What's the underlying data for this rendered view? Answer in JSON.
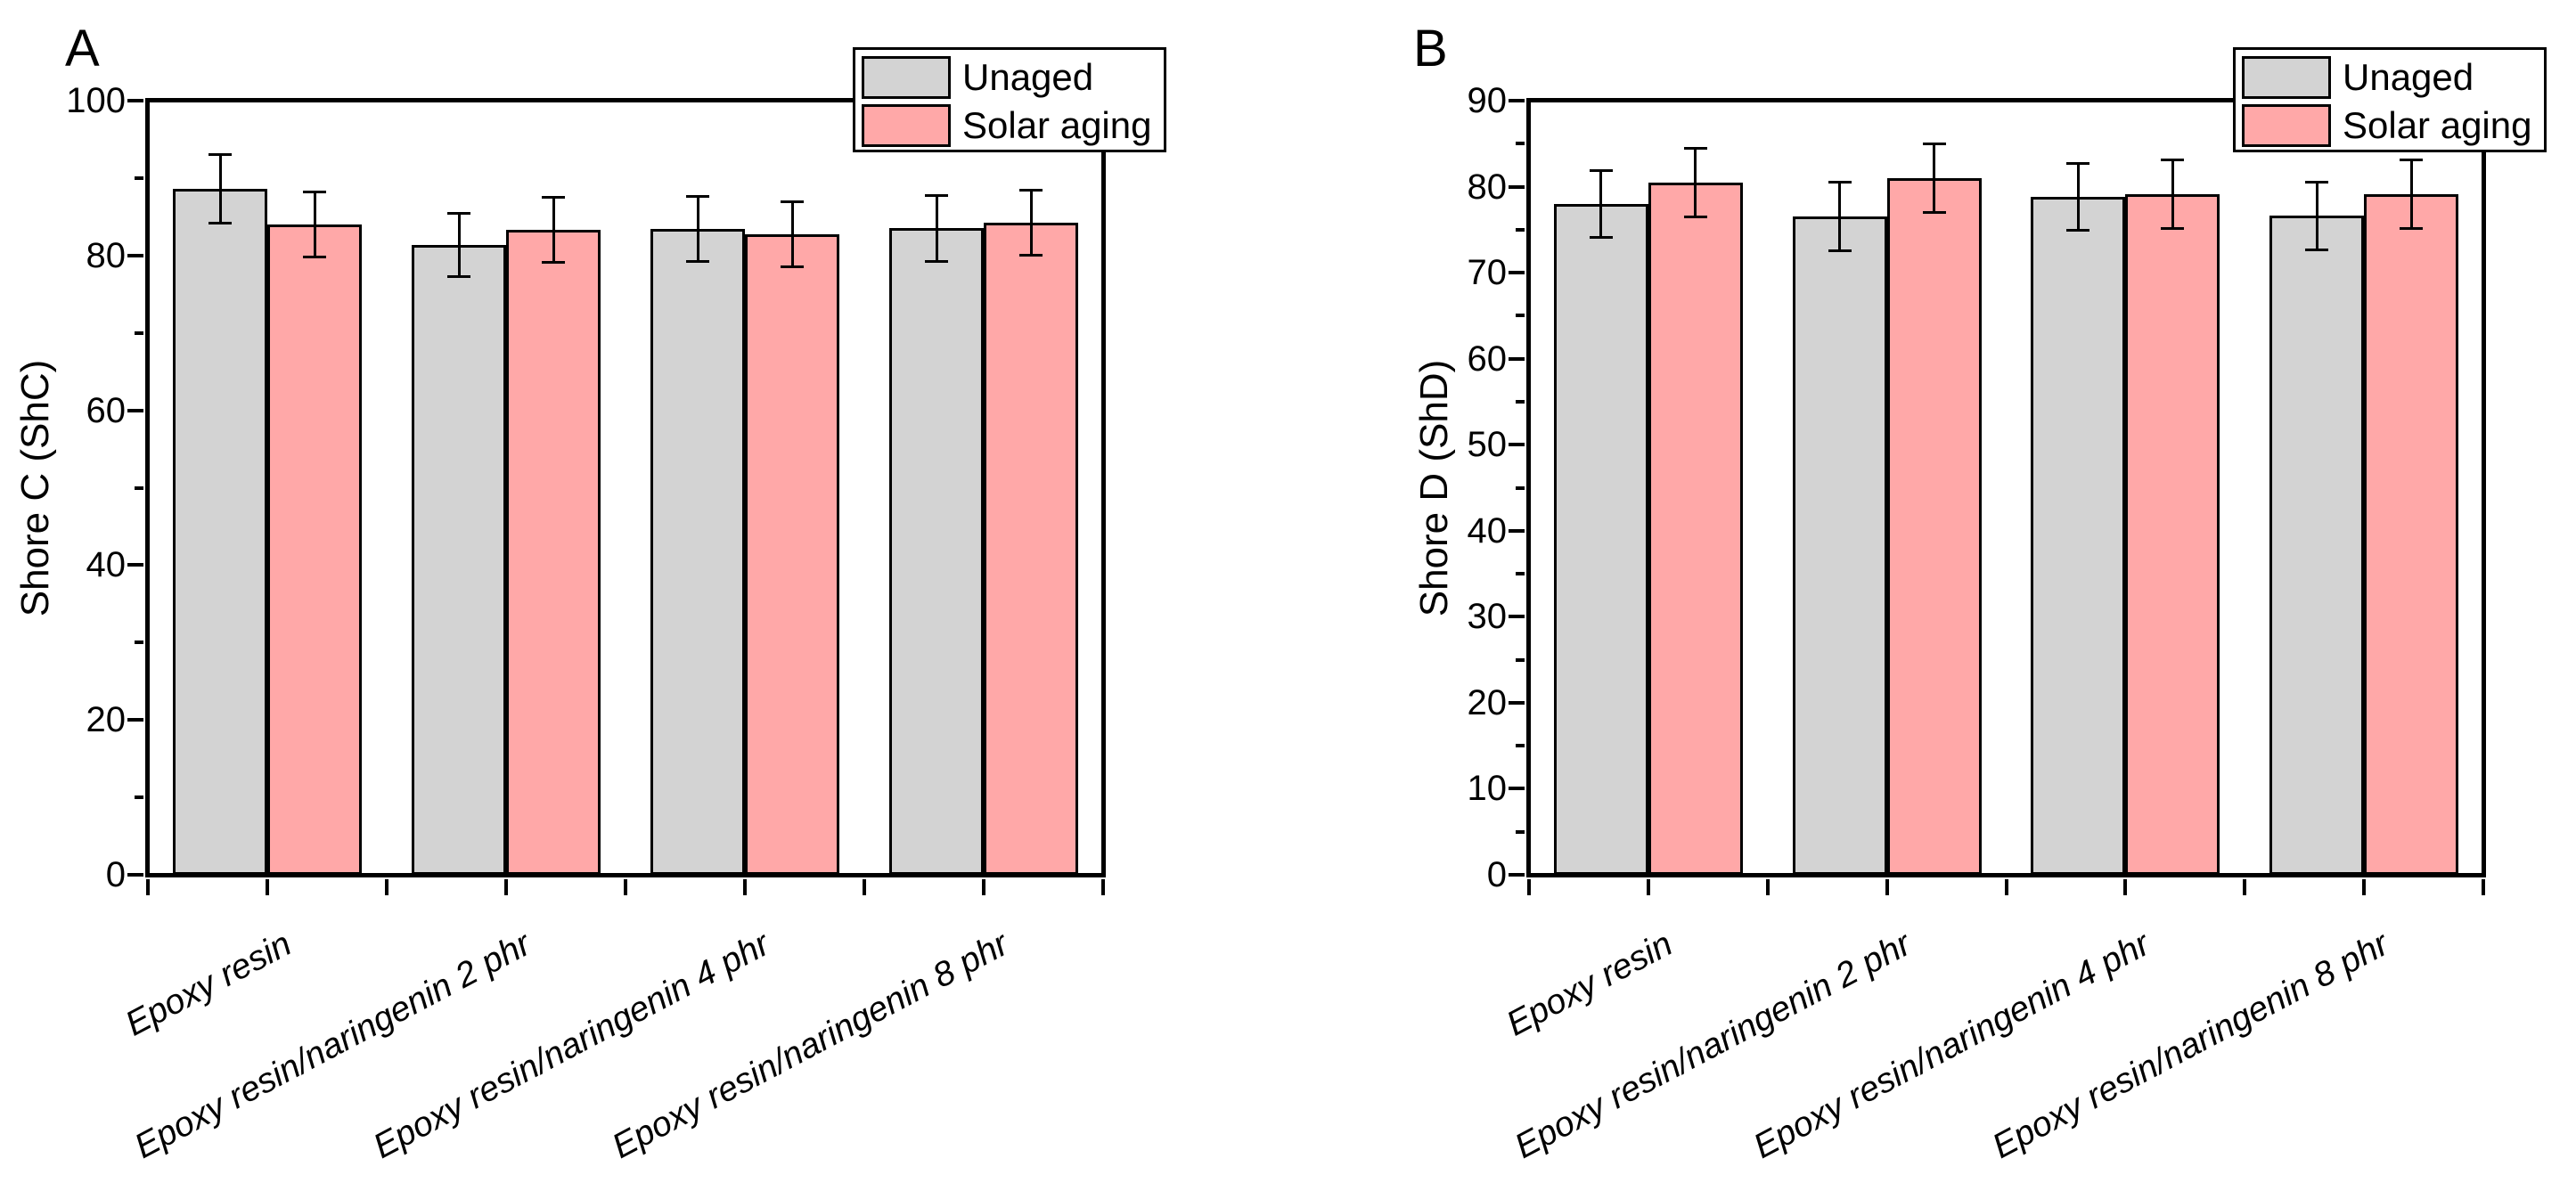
{
  "chart_data": [
    {
      "type": "bar",
      "panel_label": "A",
      "ylabel": "Shore C (ShC)",
      "xlabel": "",
      "ylim": [
        0,
        100
      ],
      "ytick_major": 20,
      "ytick_minor": 10,
      "grid": false,
      "legend_position": "top-right",
      "categories": [
        "Epoxy resin",
        "Epoxy resin/naringenin 2 phr",
        "Epoxy resin/naringenin 4 phr",
        "Epoxy resin/naringenin 8 phr"
      ],
      "series": [
        {
          "name": "Unaged",
          "color": "#D3D3D3",
          "values": [
            88.6,
            81.4,
            83.4,
            83.5
          ],
          "errors": [
            4.4,
            4.1,
            4.2,
            4.3
          ]
        },
        {
          "name": "Solar aging",
          "color": "#FFA8A8",
          "values": [
            84.0,
            83.3,
            82.7,
            84.2
          ],
          "errors": [
            4.2,
            4.2,
            4.2,
            4.2
          ]
        }
      ]
    },
    {
      "type": "bar",
      "panel_label": "B",
      "ylabel": "Shore D (ShD)",
      "xlabel": "",
      "ylim": [
        0,
        90
      ],
      "ytick_major": 10,
      "ytick_minor": 5,
      "grid": false,
      "legend_position": "top-right",
      "categories": [
        "Epoxy resin",
        "Epoxy resin/naringenin 2 phr",
        "Epoxy resin/naringenin 4 phr",
        "Epoxy resin/naringenin 8 phr"
      ],
      "series": [
        {
          "name": "Unaged",
          "color": "#D3D3D3",
          "values": [
            78.0,
            76.5,
            78.8,
            76.6
          ],
          "errors": [
            3.9,
            4.0,
            3.9,
            3.9
          ]
        },
        {
          "name": "Solar aging",
          "color": "#FFA8A8",
          "values": [
            80.5,
            81.0,
            79.1,
            79.1
          ],
          "errors": [
            4.0,
            4.0,
            4.0,
            4.0
          ]
        }
      ]
    }
  ],
  "legend": {
    "items": [
      {
        "label": "Unaged",
        "color": "#D3D3D3"
      },
      {
        "label": "Solar aging",
        "color": "#FFA8A8"
      }
    ]
  }
}
